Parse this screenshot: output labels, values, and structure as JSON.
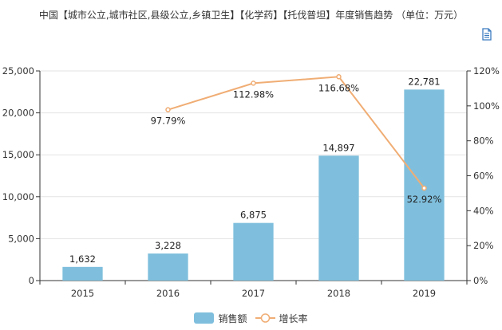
{
  "page": {
    "title": "中国【城市公立,城市社区,县级公立,乡镇卫生】【化学药】【托伐普坦】年度销售趋势 （单位：万元）",
    "toolbar_icon": "document-icon"
  },
  "legend": {
    "bar_label": "销售额",
    "line_label": "增长率"
  },
  "colors": {
    "bar": "#7fbfdd",
    "line": "#f0ad74",
    "axis": "#333333",
    "grid": "#e3e3e3"
  },
  "chart_data": {
    "type": "bar",
    "categories": [
      "2015",
      "2016",
      "2017",
      "2018",
      "2019"
    ],
    "series": [
      {
        "name": "销售额",
        "type": "bar",
        "axis": "left",
        "values": [
          1632,
          3228,
          6875,
          14897,
          22781
        ],
        "labels": [
          "1,632",
          "3,228",
          "6,875",
          "14,897",
          "22,781"
        ]
      },
      {
        "name": "增长率",
        "type": "line",
        "axis": "right",
        "values": [
          null,
          97.79,
          112.98,
          116.68,
          52.92
        ],
        "labels": [
          "",
          "97.79%",
          "112.98%",
          "116.68%",
          "52.92%"
        ]
      }
    ],
    "y_left": {
      "min": 0,
      "max": 25000,
      "ticks": [
        "0",
        "5,000",
        "10,000",
        "15,000",
        "20,000",
        "25,000"
      ]
    },
    "y_right": {
      "min": 0,
      "max": 120,
      "ticks": [
        "0%",
        "20%",
        "40%",
        "60%",
        "80%",
        "100%",
        "120%"
      ]
    },
    "grid": true,
    "legend_position": "bottom-center"
  }
}
